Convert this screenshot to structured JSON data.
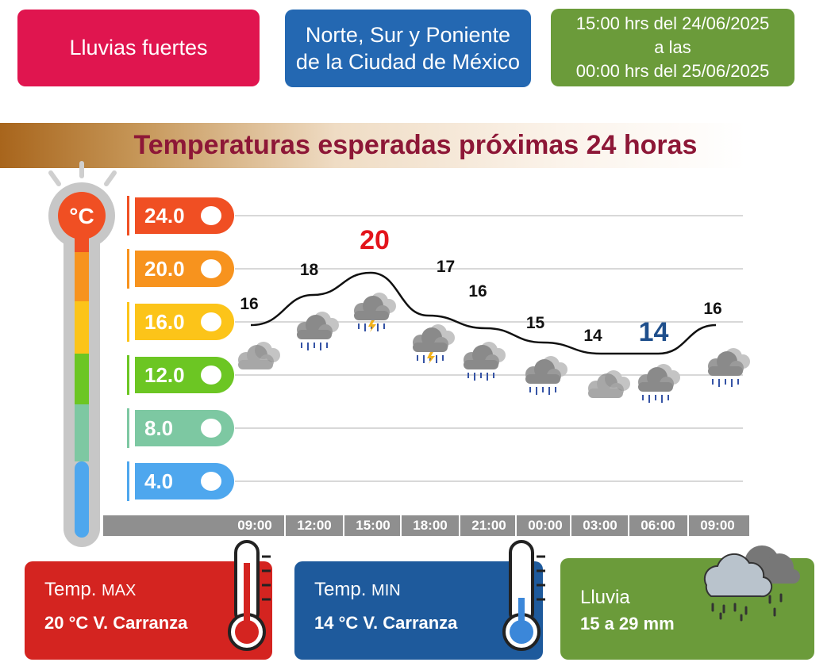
{
  "alert": {
    "label": "Lluvias fuertes",
    "color": "#e0154f"
  },
  "zone": {
    "line1": "Norte, Sur y Poniente",
    "line2": "de la Ciudad de México",
    "color": "#2468b2"
  },
  "period": {
    "line1": "15:00 hrs del 24/06/2025",
    "line2": "a las",
    "line3": "00:00 hrs del 25/06/2025",
    "color": "#6b9b3a"
  },
  "banner": {
    "title": "Temperaturas esperadas próximas 24 horas"
  },
  "thermometer": {
    "unit": "°C"
  },
  "scale": [
    {
      "value": "24.0",
      "color": "#f04f23"
    },
    {
      "value": "20.0",
      "color": "#f7931e"
    },
    {
      "value": "16.0",
      "color": "#fcc419"
    },
    {
      "value": "12.0",
      "color": "#6cc623"
    },
    {
      "value": "8.0",
      "color": "#7dc8a2"
    },
    {
      "value": "4.0",
      "color": "#4ea7ee"
    }
  ],
  "chart_data": {
    "type": "line",
    "categories": [
      "09:00",
      "12:00",
      "15:00",
      "18:00",
      "21:00",
      "00:00",
      "03:00",
      "06:00",
      "09:00"
    ],
    "values": [
      16,
      18,
      20,
      17,
      16,
      15,
      14,
      14,
      16
    ],
    "value_labels": [
      "16",
      "18",
      "20",
      "17",
      "16",
      "15",
      "14",
      "14",
      "16"
    ],
    "ylim": [
      4,
      24
    ],
    "yticks": [
      "24.0",
      "20.0",
      "16.0",
      "12.0",
      "8.0",
      "4.0"
    ],
    "max_index": 2,
    "min_index": 7,
    "max_color": "#e3141b",
    "min_color": "#1f4f8c",
    "icons": [
      "cloudy-icon",
      "rain-cloud-icon",
      "storm-cloud-icon",
      "storm-cloud-icon",
      "rain-cloud-icon",
      "rain-cloud-icon",
      "cloudy-icon",
      "rain-cloud-icon",
      "rain-cloud-icon"
    ]
  },
  "cards": {
    "max": {
      "title": "Temp.",
      "sub": "MAX",
      "value": "20 °C  V. Carranza",
      "color": "#d42420"
    },
    "min": {
      "title": "Temp.",
      "sub": "MIN",
      "value": "14 °C  V. Carranza",
      "color": "#1e5a9c"
    },
    "rain": {
      "title": "Lluvia",
      "value": "15 a 29 mm",
      "color": "#6b9b3a"
    }
  }
}
